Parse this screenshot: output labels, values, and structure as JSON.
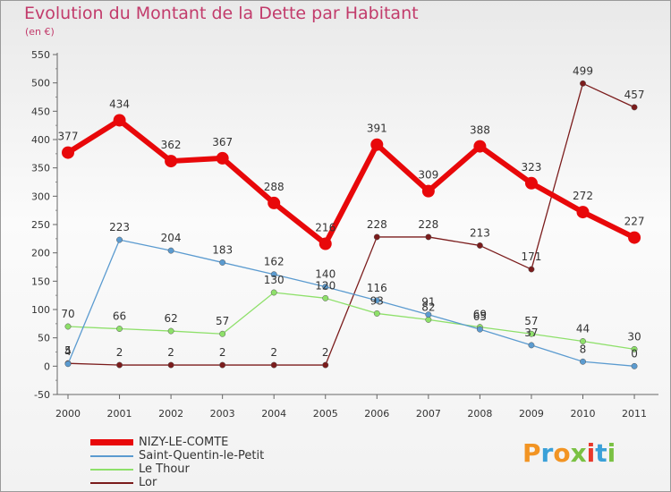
{
  "title": "Evolution du Montant de la Dette par Habitant",
  "subtitle": "(en €)",
  "logo_text": "Proxiti",
  "chart_data": {
    "type": "line",
    "title": "Evolution du Montant de la Dette par Habitant",
    "subtitle": "(en €)",
    "x": [
      "2000",
      "2001",
      "2002",
      "2003",
      "2004",
      "2005",
      "2006",
      "2007",
      "2008",
      "2009",
      "2010",
      "2011"
    ],
    "yticks": [
      -50,
      0,
      50,
      100,
      150,
      200,
      250,
      300,
      350,
      400,
      450,
      500,
      550
    ],
    "ylim": [
      -50,
      550
    ],
    "grid": false,
    "legend_position": "bottom-left",
    "series": [
      {
        "name": "NIZY-LE-COMTE",
        "color": "#e8080a",
        "values": [
          377,
          434,
          362,
          367,
          288,
          216,
          391,
          309,
          388,
          323,
          272,
          227
        ]
      },
      {
        "name": "Saint-Quentin-le-Petit",
        "color": "#5b9bd0",
        "values": [
          4,
          223,
          204,
          183,
          162,
          140,
          116,
          91,
          65,
          37,
          8,
          0
        ]
      },
      {
        "name": "Le Thour",
        "color": "#8ee06a",
        "values": [
          70,
          66,
          62,
          57,
          130,
          120,
          93,
          82,
          69,
          57,
          44,
          30
        ]
      },
      {
        "name": "Lor",
        "color": "#7b1c1c",
        "values": [
          5,
          2,
          2,
          2,
          2,
          2,
          228,
          228,
          213,
          171,
          499,
          457
        ]
      }
    ]
  }
}
